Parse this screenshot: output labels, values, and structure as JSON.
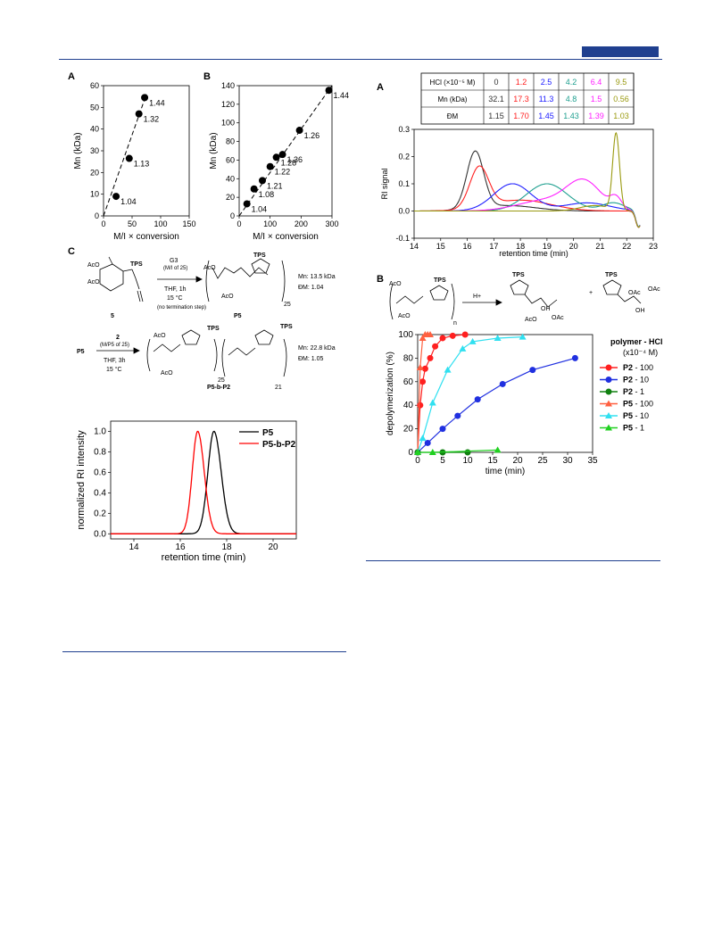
{
  "header": {
    "accent": "#1f3f8f"
  },
  "panels": {
    "left_top": {
      "labels": [
        "A",
        "B",
        "C"
      ]
    }
  },
  "chart_data": [
    {
      "id": "A",
      "type": "scatter",
      "xlabel": "M/I × conversion",
      "ylabel": "Mn (kDa)",
      "xlim": [
        0,
        150
      ],
      "ylim": [
        0,
        60
      ],
      "xticks": [
        0,
        50,
        100,
        150
      ],
      "yticks": [
        0,
        10,
        20,
        30,
        40,
        50,
        60
      ],
      "points": [
        {
          "x": 22,
          "y": 9,
          "label": "1.04"
        },
        {
          "x": 45,
          "y": 26.5,
          "label": "1.13"
        },
        {
          "x": 62,
          "y": 47,
          "label": "1.32"
        },
        {
          "x": 72,
          "y": 54.5,
          "label": "1.44"
        }
      ],
      "fit": {
        "x": [
          0,
          75
        ],
        "y": [
          0,
          56
        ]
      }
    },
    {
      "id": "B",
      "type": "scatter",
      "xlabel": "M/I × conversion",
      "ylabel": "Mn (kDa)",
      "xlim": [
        0,
        300
      ],
      "ylim": [
        0,
        140
      ],
      "xticks": [
        0,
        100,
        200,
        300
      ],
      "yticks": [
        0,
        20,
        40,
        60,
        80,
        100,
        120,
        140
      ],
      "points": [
        {
          "x": 25,
          "y": 13,
          "label": "1.04"
        },
        {
          "x": 48,
          "y": 29,
          "label": "1.08"
        },
        {
          "x": 75,
          "y": 38,
          "label": "1.21"
        },
        {
          "x": 100,
          "y": 53,
          "label": "1.22"
        },
        {
          "x": 120,
          "y": 63,
          "label": "1.28"
        },
        {
          "x": 140,
          "y": 66,
          "label": "1.36"
        },
        {
          "x": 195,
          "y": 92,
          "label": "1.26"
        },
        {
          "x": 290,
          "y": 135,
          "label": "1.44"
        }
      ],
      "fit": {
        "x": [
          0,
          300
        ],
        "y": [
          0,
          140
        ]
      }
    },
    {
      "id": "C-GPC",
      "type": "line",
      "xlabel": "retention time (min)",
      "ylabel": "normalized RI intensity",
      "xlim": [
        13,
        21
      ],
      "ylim": [
        -0.05,
        1.1
      ],
      "xticks": [
        14,
        16,
        18,
        20
      ],
      "yticks": [
        0.0,
        0.2,
        0.4,
        0.6,
        0.8,
        1.0
      ],
      "series": [
        {
          "name": "P5",
          "color": "#000000",
          "peak": 17.45,
          "width": 0.42
        },
        {
          "name": "P5-b-P2",
          "color": "#ff0000",
          "peak": 16.75,
          "width": 0.38
        }
      ]
    },
    {
      "id": "A-right",
      "type": "line",
      "xlabel": "retention time (min)",
      "ylabel": "RI signal",
      "xlim": [
        14,
        23
      ],
      "ylim": [
        -0.1,
        0.3
      ],
      "xticks": [
        14,
        15,
        16,
        17,
        18,
        19,
        20,
        21,
        22,
        23
      ],
      "yticks": [
        -0.1,
        0.0,
        0.1,
        0.2,
        0.3
      ],
      "series": [
        {
          "name": "0",
          "color": "#333333"
        },
        {
          "name": "1.2",
          "color": "#ff2020"
        },
        {
          "name": "2.5",
          "color": "#2020ff"
        },
        {
          "name": "4.2",
          "color": "#20a090"
        },
        {
          "name": "6.4",
          "color": "#ff20ff"
        },
        {
          "name": "9.5",
          "color": "#9a9a10"
        }
      ]
    },
    {
      "id": "B-right",
      "type": "line",
      "xlabel": "time (min)",
      "ylabel": "depolymerization (%)",
      "xlim": [
        0,
        35
      ],
      "ylim": [
        0,
        100
      ],
      "xticks": [
        0,
        5,
        10,
        15,
        20,
        25,
        30,
        35
      ],
      "yticks": [
        0,
        20,
        40,
        60,
        80,
        100
      ],
      "series": [
        {
          "name": "P2 - 100",
          "color": "#ff2020",
          "marker": "circle",
          "x": [
            0,
            0.5,
            1,
            1.5,
            2.5,
            3.5,
            5,
            7,
            9.5
          ],
          "y": [
            0,
            40,
            60,
            71,
            80,
            90,
            97,
            99,
            100
          ]
        },
        {
          "name": "P2 - 10",
          "color": "#2030e0",
          "marker": "circle",
          "x": [
            0,
            2,
            5,
            8,
            12,
            17,
            23,
            31.5
          ],
          "y": [
            0,
            8,
            20,
            31,
            45,
            58,
            70,
            80
          ]
        },
        {
          "name": "P2 - 1",
          "color": "#108010",
          "marker": "circle",
          "x": [
            0,
            5,
            10
          ],
          "y": [
            0,
            0,
            0
          ]
        },
        {
          "name": "P5 - 100",
          "color": "#ff6040",
          "marker": "triangle",
          "x": [
            0,
            0.5,
            1,
            1.5,
            2,
            2.5
          ],
          "y": [
            0,
            72,
            97,
            100,
            100,
            100
          ]
        },
        {
          "name": "P5 - 10",
          "color": "#30e0f0",
          "marker": "triangle",
          "x": [
            0,
            1,
            3,
            6,
            9,
            11,
            16,
            21
          ],
          "y": [
            0,
            12,
            42,
            70,
            88,
            94,
            97,
            98
          ]
        },
        {
          "name": "P5 - 1",
          "color": "#20d020",
          "marker": "triangle",
          "x": [
            0,
            3,
            16
          ],
          "y": [
            0,
            0,
            2
          ]
        }
      ]
    }
  ],
  "panelA_labels": {
    "A": "A",
    "B": "B",
    "C": "C",
    "A2": "A",
    "B2": "B"
  },
  "table": {
    "headers": [
      "HCl (×10⁻⁵ M)",
      "Mn (kDa)",
      "ĐM"
    ],
    "cols": [
      {
        "v": [
          "0",
          "32.1",
          "1.15"
        ],
        "color": "#333333"
      },
      {
        "v": [
          "1.2",
          "17.3",
          "1.70"
        ],
        "color": "#ff2020"
      },
      {
        "v": [
          "2.5",
          "11.3",
          "1.45"
        ],
        "color": "#2020ff"
      },
      {
        "v": [
          "4.2",
          "4.8",
          "1.43"
        ],
        "color": "#20a090"
      },
      {
        "v": [
          "6.4",
          "1.5",
          "1.39"
        ],
        "color": "#ff20ff"
      },
      {
        "v": [
          "9.5",
          "0.56",
          "1.03"
        ],
        "color": "#9a9a10"
      }
    ]
  },
  "scheme": {
    "g3": "G3",
    "mi25": "(M/I of 25)",
    "thf1": "THF, 1h",
    "t15": "15 °C",
    "noterm": "(no termination step)",
    "cmp5": "5",
    "p5": "P5",
    "mn1": "Mn: 13.5 kDa",
    "d1": "ĐM: 1.04",
    "sub25": "25",
    "two": "2",
    "mip5": "(M/P5 of 25)",
    "thf3": "THF, 3h",
    "t15b": "15 °C",
    "p5b": "P5",
    "p5bp2": "P5-b-P2",
    "mn2": "Mn: 22.8 kDa",
    "d2": "ĐM: 1.05",
    "sub25b": "25",
    "sub21": "21",
    "tps": "TPS",
    "aco": "AcO",
    "hplus": "H+",
    "oac": "OAc",
    "oh": "OH",
    "n": "n"
  },
  "legendB": {
    "title": "polymer - HCl",
    "unit": "(x10⁻⁴ M)"
  }
}
